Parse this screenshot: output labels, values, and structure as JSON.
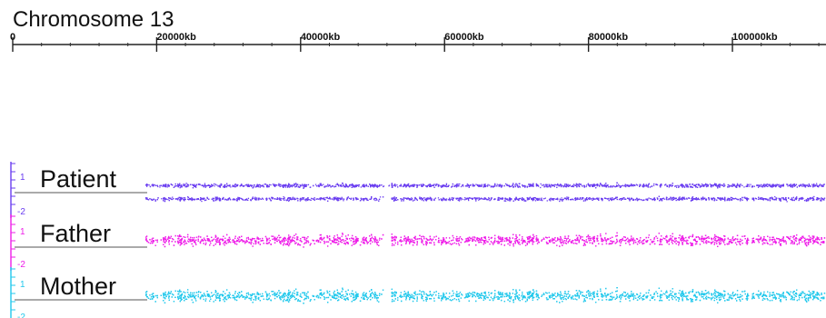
{
  "chart_data": {
    "type": "scatter",
    "title": "Chromosome 13",
    "x_axis": {
      "unit": "kb",
      "ticks": [
        {
          "value": 0,
          "label": "0"
        },
        {
          "value": 20000,
          "label": "20000kb"
        },
        {
          "value": 40000,
          "label": "40000kb"
        },
        {
          "value": 60000,
          "label": "60000kb"
        },
        {
          "value": 80000,
          "label": "80000kb"
        },
        {
          "value": 100000,
          "label": "100000kb"
        }
      ],
      "range": [
        0,
        113000
      ]
    },
    "tracks": [
      {
        "name": "Patient",
        "color": "#6a3df0",
        "y_scale_labels": [
          "1",
          "-2"
        ],
        "bands": [
          {
            "center": 0.35,
            "spread": 0.18
          },
          {
            "center": -0.35,
            "spread": 0.18
          }
        ],
        "gaps": [
          [
            51000,
            52500
          ]
        ]
      },
      {
        "name": "Father",
        "color": "#ee1ee8",
        "y_scale_labels": [
          "1",
          "-2"
        ],
        "bands": [
          {
            "center": 0.25,
            "spread": 0.5
          }
        ],
        "gaps": [
          [
            51000,
            52500
          ]
        ]
      },
      {
        "name": "Mother",
        "color": "#22c8ec",
        "y_scale_labels": [
          "1",
          "-2"
        ],
        "bands": [
          {
            "center": 0.1,
            "spread": 0.55
          }
        ],
        "gaps": [
          [
            51000,
            52500
          ]
        ]
      }
    ]
  }
}
